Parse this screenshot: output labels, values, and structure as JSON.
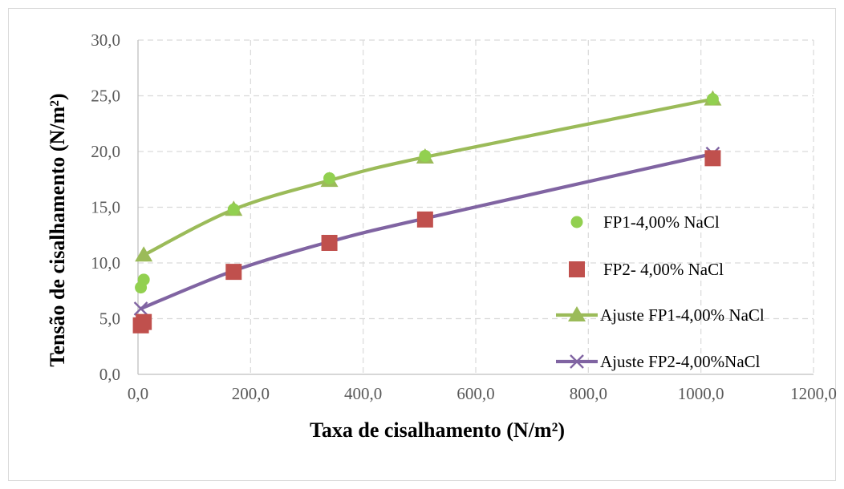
{
  "chart_data": {
    "type": "scatter",
    "xlabel": "Taxa de cisalhamento (N/m²)",
    "ylabel": "Tensão de cisalhamento (N/m²)",
    "xlim": [
      0,
      1200
    ],
    "ylim": [
      0,
      30
    ],
    "x_ticks": [
      "0,0",
      "200,0",
      "400,0",
      "600,0",
      "800,0",
      "1000,0",
      "1200,0"
    ],
    "y_ticks": [
      "0,0",
      "5,0",
      "10,0",
      "15,0",
      "20,0",
      "25,0",
      "30,0"
    ],
    "grid": true,
    "legend_position": "right",
    "series": [
      {
        "name": "FP1-4,00% NaCl",
        "kind": "marker",
        "marker": "circle",
        "color": "#92d050",
        "points": [
          [
            5.1,
            7.8
          ],
          [
            10.2,
            8.5
          ],
          [
            170,
            14.8
          ],
          [
            340,
            17.6
          ],
          [
            510,
            19.6
          ],
          [
            1021,
            24.7
          ]
        ]
      },
      {
        "name": "FP2- 4,00% NaCl",
        "kind": "marker",
        "marker": "square",
        "color": "#c0504d",
        "points": [
          [
            5.1,
            4.4
          ],
          [
            10.2,
            4.7
          ],
          [
            170,
            9.2
          ],
          [
            340,
            11.8
          ],
          [
            510,
            13.9
          ],
          [
            1021,
            19.4
          ]
        ]
      },
      {
        "name": "Ajuste FP1-4,00% NaCl",
        "kind": "line",
        "marker": "triangle",
        "color": "#9bbb59",
        "points": [
          [
            10.2,
            10.7
          ],
          [
            170,
            14.8
          ],
          [
            340,
            17.4
          ],
          [
            510,
            19.5
          ],
          [
            1021,
            24.7
          ]
        ]
      },
      {
        "name": "Ajuste FP2-4,00%NaCl",
        "kind": "line",
        "marker": "x",
        "color": "#8064a2",
        "points": [
          [
            5.1,
            5.9
          ],
          [
            170,
            9.3
          ],
          [
            340,
            11.9
          ],
          [
            510,
            14.0
          ],
          [
            1021,
            19.8
          ]
        ]
      }
    ]
  }
}
